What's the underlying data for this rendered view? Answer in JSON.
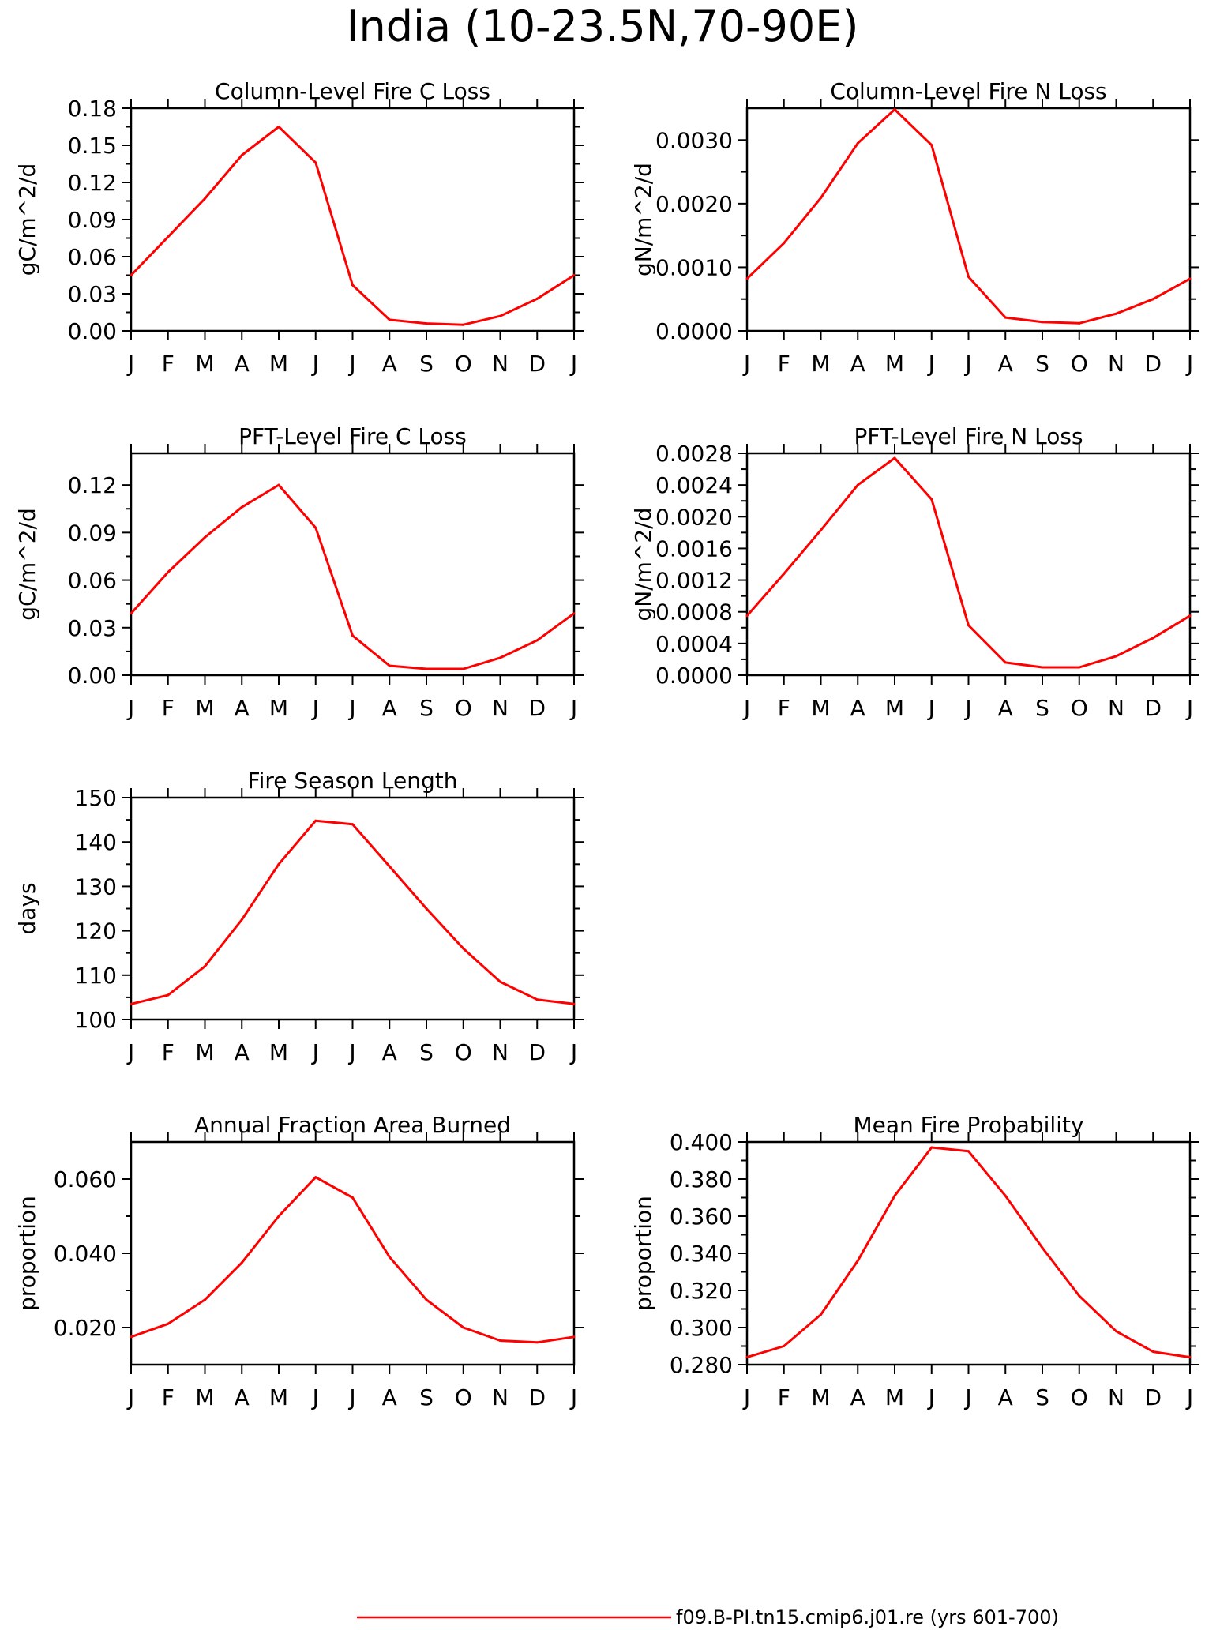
{
  "page_title": "India (10-23.5N,70-90E)",
  "legend": {
    "label": "f09.B-PI.tn15.cmip6.j01.re (yrs 601-700)",
    "color": "#ff0000"
  },
  "line_color": "#ff0000",
  "chart_data": [
    {
      "type": "line",
      "title": "Column-Level Fire C Loss",
      "ylabel": "gC/m^2/d",
      "xlabel": "",
      "categories": [
        "J",
        "F",
        "M",
        "A",
        "M",
        "J",
        "J",
        "A",
        "S",
        "O",
        "N",
        "D",
        "J"
      ],
      "values": [
        0.045,
        0.076,
        0.107,
        0.142,
        0.165,
        0.136,
        0.037,
        0.009,
        0.006,
        0.005,
        0.012,
        0.026,
        0.045
      ],
      "ylim": [
        0,
        0.18
      ],
      "yticks": [
        0.0,
        0.03,
        0.06,
        0.09,
        0.12,
        0.15,
        0.18
      ],
      "ytick_labels": [
        "0.00",
        "0.03",
        "0.06",
        "0.09",
        "0.12",
        "0.15",
        "0.18"
      ],
      "grid": false
    },
    {
      "type": "line",
      "title": "Column-Level Fire N Loss",
      "ylabel": "gN/m^2/d",
      "xlabel": "",
      "categories": [
        "J",
        "F",
        "M",
        "A",
        "M",
        "J",
        "J",
        "A",
        "S",
        "O",
        "N",
        "D",
        "J"
      ],
      "values": [
        0.00082,
        0.00138,
        0.00209,
        0.00295,
        0.00348,
        0.00292,
        0.00085,
        0.00021,
        0.00014,
        0.00012,
        0.00027,
        0.0005,
        0.00082
      ],
      "ylim": [
        0,
        0.0035
      ],
      "yticks": [
        0.0,
        0.001,
        0.002,
        0.003
      ],
      "ytick_labels": [
        "0.0000",
        "0.0010",
        "0.0020",
        "0.0030"
      ],
      "grid": false
    },
    {
      "type": "line",
      "title": "PFT-Level Fire C Loss",
      "ylabel": "gC/m^2/d",
      "xlabel": "",
      "categories": [
        "J",
        "F",
        "M",
        "A",
        "M",
        "J",
        "J",
        "A",
        "S",
        "O",
        "N",
        "D",
        "J"
      ],
      "values": [
        0.039,
        0.065,
        0.087,
        0.106,
        0.12,
        0.093,
        0.025,
        0.006,
        0.004,
        0.004,
        0.011,
        0.022,
        0.039
      ],
      "ylim": [
        0,
        0.14
      ],
      "yticks": [
        0.0,
        0.03,
        0.06,
        0.09,
        0.12
      ],
      "ytick_labels": [
        "0.00",
        "0.03",
        "0.06",
        "0.09",
        "0.12"
      ],
      "grid": false
    },
    {
      "type": "line",
      "title": "PFT-Level Fire N Loss",
      "ylabel": "gN/m^2/d",
      "xlabel": "",
      "categories": [
        "J",
        "F",
        "M",
        "A",
        "M",
        "J",
        "J",
        "A",
        "S",
        "O",
        "N",
        "D",
        "J"
      ],
      "values": [
        0.00075,
        0.00128,
        0.00183,
        0.0024,
        0.00274,
        0.00222,
        0.00063,
        0.00016,
        0.0001,
        0.0001,
        0.00024,
        0.00047,
        0.00075
      ],
      "ylim": [
        0,
        0.0028
      ],
      "yticks": [
        0.0,
        0.0004,
        0.0008,
        0.0012,
        0.0016,
        0.002,
        0.0024,
        0.0028
      ],
      "ytick_labels": [
        "0.0000",
        "0.0004",
        "0.0008",
        "0.0012",
        "0.0016",
        "0.0020",
        "0.0024",
        "0.0028"
      ],
      "grid": false
    },
    {
      "type": "line",
      "title": "Fire Season Length",
      "ylabel": "days",
      "xlabel": "",
      "categories": [
        "J",
        "F",
        "M",
        "A",
        "M",
        "J",
        "J",
        "A",
        "S",
        "O",
        "N",
        "D",
        "J"
      ],
      "values": [
        103.5,
        105.5,
        112,
        122.5,
        135,
        144.8,
        144,
        134.5,
        125,
        116,
        108.5,
        104.5,
        103.5
      ],
      "ylim": [
        100,
        150
      ],
      "yticks": [
        100,
        110,
        120,
        130,
        140,
        150
      ],
      "ytick_labels": [
        "100",
        "110",
        "120",
        "130",
        "140",
        "150"
      ],
      "grid": false
    },
    {
      "type": "line",
      "title": "Annual Fraction Area Burned",
      "ylabel": "proportion",
      "xlabel": "",
      "categories": [
        "J",
        "F",
        "M",
        "A",
        "M",
        "J",
        "J",
        "A",
        "S",
        "O",
        "N",
        "D",
        "J"
      ],
      "values": [
        0.0175,
        0.021,
        0.0275,
        0.0375,
        0.05,
        0.0605,
        0.055,
        0.039,
        0.0275,
        0.02,
        0.0165,
        0.016,
        0.0175
      ],
      "ylim": [
        0.01,
        0.07
      ],
      "yticks": [
        0.02,
        0.04,
        0.06
      ],
      "ytick_labels": [
        "0.020",
        "0.040",
        "0.060"
      ],
      "grid": false
    },
    {
      "type": "line",
      "title": "Mean Fire Probability",
      "ylabel": "proportion",
      "xlabel": "",
      "categories": [
        "J",
        "F",
        "M",
        "A",
        "M",
        "J",
        "J",
        "A",
        "S",
        "O",
        "N",
        "D",
        "J"
      ],
      "values": [
        0.284,
        0.29,
        0.307,
        0.336,
        0.371,
        0.397,
        0.395,
        0.371,
        0.343,
        0.317,
        0.298,
        0.287,
        0.284
      ],
      "ylim": [
        0.28,
        0.4
      ],
      "yticks": [
        0.28,
        0.3,
        0.32,
        0.34,
        0.36,
        0.38,
        0.4
      ],
      "ytick_labels": [
        "0.280",
        "0.300",
        "0.320",
        "0.340",
        "0.360",
        "0.380",
        "0.400"
      ],
      "grid": false
    }
  ]
}
